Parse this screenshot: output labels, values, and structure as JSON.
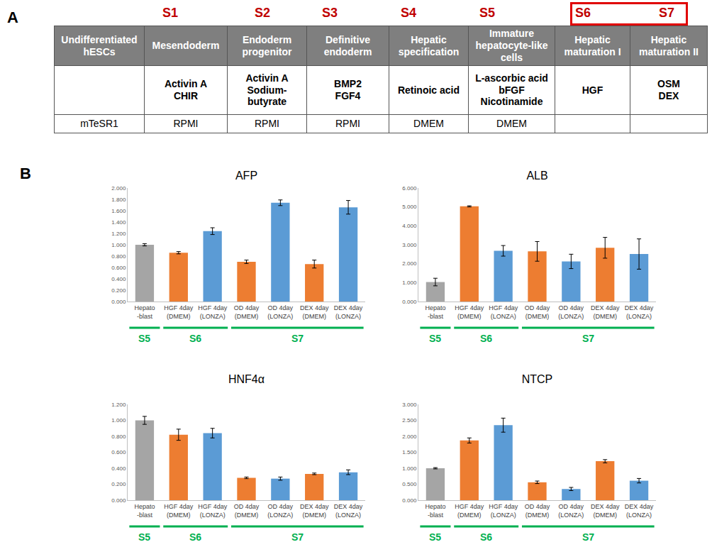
{
  "panel_a": {
    "label": "A",
    "stages": [
      {
        "label": "S1"
      },
      {
        "label": "S2"
      },
      {
        "label": "S3"
      },
      {
        "label": "S4"
      },
      {
        "label": "S5"
      },
      {
        "label": "S6",
        "highlight": true
      },
      {
        "label": "S7",
        "highlight": true
      }
    ],
    "table": {
      "header": [
        "Undifferentiated hESCs",
        "Mesendoderm",
        "Endoderm progenitor",
        "Definitive endoderm",
        "Hepatic specification",
        "Immature hepatocyte-like cells",
        "Hepatic maturation I",
        "Hepatic maturation II"
      ],
      "factors": [
        null,
        [
          "Activin A",
          "CHIR"
        ],
        [
          "Activin A",
          "Sodium-",
          "butyrate"
        ],
        [
          "BMP2",
          "FGF4"
        ],
        [
          "Retinoic acid"
        ],
        [
          "L-ascorbic acid",
          "bFGF",
          "Nicotinamide"
        ],
        [
          "HGF"
        ],
        [
          "OSM",
          "DEX"
        ]
      ],
      "media": [
        "mTeSR1",
        "RPMI",
        "RPMI",
        "RPMI",
        "DMEM",
        "DMEM",
        null,
        null
      ]
    }
  },
  "panel_b": {
    "label": "B",
    "stage_groups": [
      {
        "label": "S5",
        "categories": [
          "Hepato\n-blast"
        ]
      },
      {
        "label": "S6",
        "categories": [
          "HGF 4day\n(DMEM)",
          "HGF 4day\n(LONZA)"
        ]
      },
      {
        "label": "S7",
        "categories": [
          "OD 4day\n(DMEM)",
          "OD 4day\n(LONZA)",
          "DEX 4day\n(DMEM)",
          "DEX 4day\n(LONZA)"
        ]
      }
    ]
  },
  "chart_data": [
    {
      "type": "bar",
      "title": "AFP",
      "grid": false,
      "categories": [
        "Hepato\n-blast",
        "HGF 4day\n(DMEM)",
        "HGF 4day\n(LONZA)",
        "OD 4day\n(DMEM)",
        "OD 4day\n(LONZA)",
        "DEX 4day\n(DMEM)",
        "DEX 4day\n(LONZA)"
      ],
      "values": [
        1.0,
        0.86,
        1.24,
        0.7,
        1.74,
        0.66,
        1.66
      ],
      "errors": [
        0.02,
        0.02,
        0.06,
        0.03,
        0.05,
        0.07,
        0.12
      ],
      "colors": [
        "#a5a5a5",
        "#ed7d31",
        "#5b9bd5",
        "#ed7d31",
        "#5b9bd5",
        "#ed7d31",
        "#5b9bd5"
      ],
      "ylim": [
        0,
        2
      ],
      "yticks": [
        {
          "value": 0,
          "label": "0.000"
        },
        {
          "value": 0.2,
          "label": "0.200"
        },
        {
          "value": 0.4,
          "label": "0.400"
        },
        {
          "value": 0.6,
          "label": "0.600"
        },
        {
          "value": 0.8,
          "label": "0.800"
        },
        {
          "value": 1,
          "label": "1.000"
        },
        {
          "value": 1.2,
          "label": "1.200"
        },
        {
          "value": 1.4,
          "label": "1.400"
        },
        {
          "value": 1.6,
          "label": "1.600"
        },
        {
          "value": 1.8,
          "label": "1.800"
        },
        {
          "value": 2,
          "label": "2.000"
        }
      ]
    },
    {
      "type": "bar",
      "title": "ALB",
      "grid": false,
      "categories": [
        "Hepato\n-blast",
        "HGF 4day\n(DMEM)",
        "HGF 4day\n(LONZA)",
        "OD 4day\n(DMEM)",
        "OD 4day\n(LONZA)",
        "DEX 4day\n(DMEM)",
        "DEX 4day\n(LONZA)"
      ],
      "values": [
        1.03,
        5.03,
        2.68,
        2.65,
        2.12,
        2.84,
        2.51
      ],
      "errors": [
        0.2,
        0.03,
        0.28,
        0.52,
        0.38,
        0.55,
        0.8
      ],
      "colors": [
        "#a5a5a5",
        "#ed7d31",
        "#5b9bd5",
        "#ed7d31",
        "#5b9bd5",
        "#ed7d31",
        "#5b9bd5"
      ],
      "ylim": [
        0,
        6
      ],
      "yticks": [
        {
          "value": 0,
          "label": "0.000"
        },
        {
          "value": 1,
          "label": "1.000"
        },
        {
          "value": 2,
          "label": "2.000"
        },
        {
          "value": 3,
          "label": "3.000"
        },
        {
          "value": 4,
          "label": "4.000"
        },
        {
          "value": 5,
          "label": "5.000"
        },
        {
          "value": 6,
          "label": "6.000"
        }
      ]
    },
    {
      "type": "bar",
      "title": "HNF4α",
      "grid": false,
      "categories": [
        "Hepato\n-blast",
        "HGF 4day\n(DMEM)",
        "HGF 4day\n(LONZA)",
        "OD 4day\n(DMEM)",
        "OD 4day\n(LONZA)",
        "DEX 4day\n(DMEM)",
        "DEX 4day\n(LONZA)"
      ],
      "values": [
        1.0,
        0.82,
        0.84,
        0.28,
        0.27,
        0.33,
        0.35
      ],
      "errors": [
        0.05,
        0.07,
        0.06,
        0.01,
        0.02,
        0.01,
        0.03
      ],
      "colors": [
        "#a5a5a5",
        "#ed7d31",
        "#5b9bd5",
        "#ed7d31",
        "#5b9bd5",
        "#ed7d31",
        "#5b9bd5"
      ],
      "ylim": [
        0,
        1.2
      ],
      "yticks": [
        {
          "value": 0,
          "label": "0.000"
        },
        {
          "value": 0.2,
          "label": "0.200"
        },
        {
          "value": 0.4,
          "label": "0.400"
        },
        {
          "value": 0.6,
          "label": "0.600"
        },
        {
          "value": 0.8,
          "label": "0.800"
        },
        {
          "value": 1,
          "label": "1.000"
        },
        {
          "value": 1.2,
          "label": "1.200"
        }
      ]
    },
    {
      "type": "bar",
      "title": "NTCP",
      "grid": false,
      "categories": [
        "Hepato\n-blast",
        "HGF 4day\n(DMEM)",
        "HGF 4day\n(LONZA)",
        "OD 4day\n(DMEM)",
        "OD 4day\n(LONZA)",
        "DEX 4day\n(DMEM)",
        "DEX 4day\n(LONZA)"
      ],
      "values": [
        1.0,
        1.87,
        2.35,
        0.56,
        0.35,
        1.22,
        0.61
      ],
      "errors": [
        0.02,
        0.08,
        0.22,
        0.04,
        0.05,
        0.05,
        0.07
      ],
      "colors": [
        "#a5a5a5",
        "#ed7d31",
        "#5b9bd5",
        "#ed7d31",
        "#5b9bd5",
        "#ed7d31",
        "#5b9bd5"
      ],
      "ylim": [
        0,
        3
      ],
      "yticks": [
        {
          "value": 0,
          "label": "0.000"
        },
        {
          "value": 0.5,
          "label": "0.500"
        },
        {
          "value": 1,
          "label": "1.000"
        },
        {
          "value": 1.5,
          "label": "1.500"
        },
        {
          "value": 2,
          "label": "2.000"
        },
        {
          "value": 2.5,
          "label": "2.500"
        },
        {
          "value": 3,
          "label": "3.000"
        }
      ]
    }
  ]
}
